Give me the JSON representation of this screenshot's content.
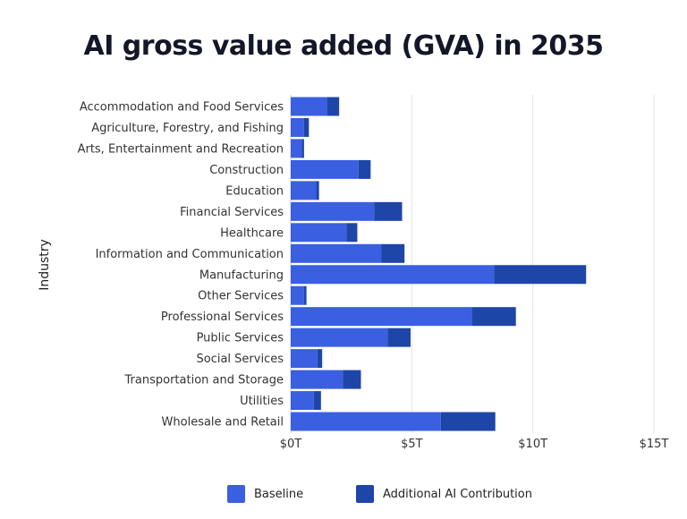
{
  "chart_data": {
    "type": "bar",
    "orientation": "horizontal",
    "stacked": true,
    "title": "AI gross value added (GVA) in 2035",
    "ylabel": "Industry",
    "xlabel": "",
    "xlim": [
      0,
      15
    ],
    "xticks": [
      0,
      5,
      10,
      15
    ],
    "xtick_labels": [
      "$0T",
      "$5T",
      "$10T",
      "$15T"
    ],
    "grid": "vertical",
    "legend_position": "bottom",
    "categories": [
      "Accommodation and Food Services",
      "Agriculture, Forestry, and Fishing",
      "Arts, Entertainment and Recreation",
      "Construction",
      "Education",
      "Financial Services",
      "Healthcare",
      "Information and Communication",
      "Manufacturing",
      "Other Services",
      "Professional Services",
      "Public Services",
      "Social Services",
      "Transportation and Storage",
      "Utilities",
      "Wholesale and Retail"
    ],
    "series": [
      {
        "name": "Baseline",
        "color": "#3a5fe0",
        "values": [
          1.5,
          0.55,
          0.45,
          2.8,
          1.05,
          3.45,
          2.3,
          3.75,
          8.4,
          0.55,
          7.5,
          4.0,
          1.1,
          2.15,
          0.95,
          6.2
        ]
      },
      {
        "name": "Additional AI Contribution",
        "color": "#1e45a8",
        "values": [
          0.5,
          0.2,
          0.1,
          0.5,
          0.12,
          1.15,
          0.45,
          0.95,
          3.8,
          0.1,
          1.8,
          0.95,
          0.2,
          0.75,
          0.3,
          2.25
        ]
      }
    ]
  }
}
